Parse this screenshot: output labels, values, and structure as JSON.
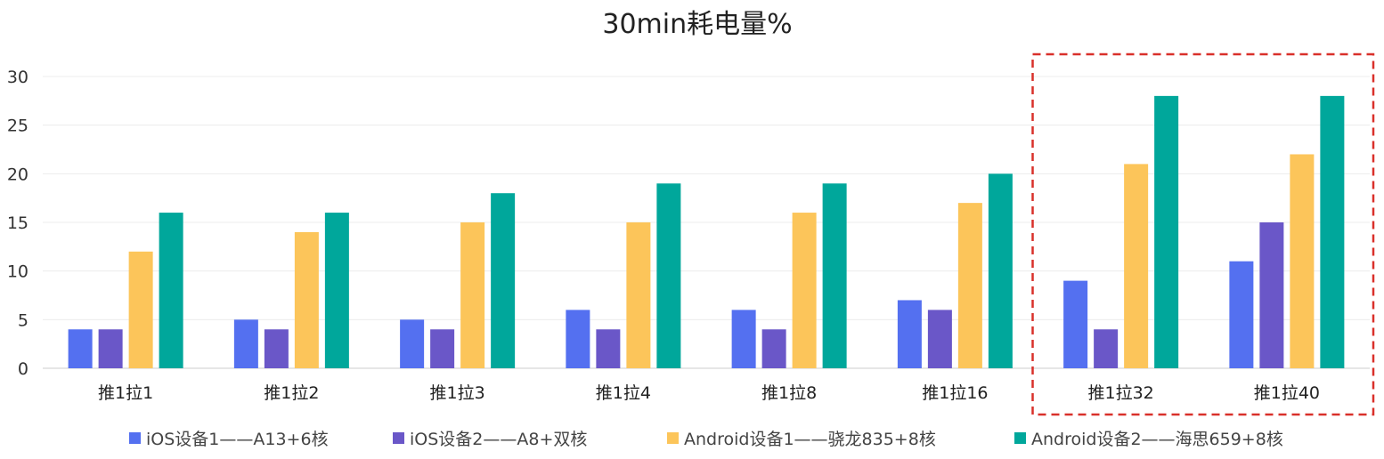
{
  "chart_data": {
    "type": "bar",
    "title": "30min耗电量%",
    "xlabel": "",
    "ylabel": "",
    "ylim": [
      0,
      30
    ],
    "yticks": [
      "0",
      "5",
      "10",
      "15",
      "20",
      "25",
      "30"
    ],
    "grid": true,
    "legend_position": "bottom",
    "categories": [
      "推1拉1",
      "推1拉2",
      "推1拉3",
      "推1拉4",
      "推1拉8",
      "推1拉16",
      "推1拉32",
      "推1拉40"
    ],
    "series": [
      {
        "name": "iOS设备1——A13+6核",
        "color": "#5470f0",
        "values": [
          4,
          5,
          5,
          6,
          6,
          7,
          9,
          11
        ]
      },
      {
        "name": "iOS设备2——A8+双核",
        "color": "#6a57c8",
        "values": [
          4,
          4,
          4,
          4,
          4,
          6,
          4,
          15
        ]
      },
      {
        "name": "Android设备1——骁龙835+8核",
        "color": "#fcc55a",
        "values": [
          12,
          14,
          15,
          15,
          16,
          17,
          21,
          22
        ]
      },
      {
        "name": "Android设备2——海思659+8核",
        "color": "#00a79b",
        "values": [
          16,
          16,
          18,
          19,
          19,
          20,
          28,
          28
        ]
      }
    ],
    "highlight": {
      "categories": [
        "推1拉32",
        "推1拉40"
      ],
      "color": "#d9302a"
    }
  }
}
